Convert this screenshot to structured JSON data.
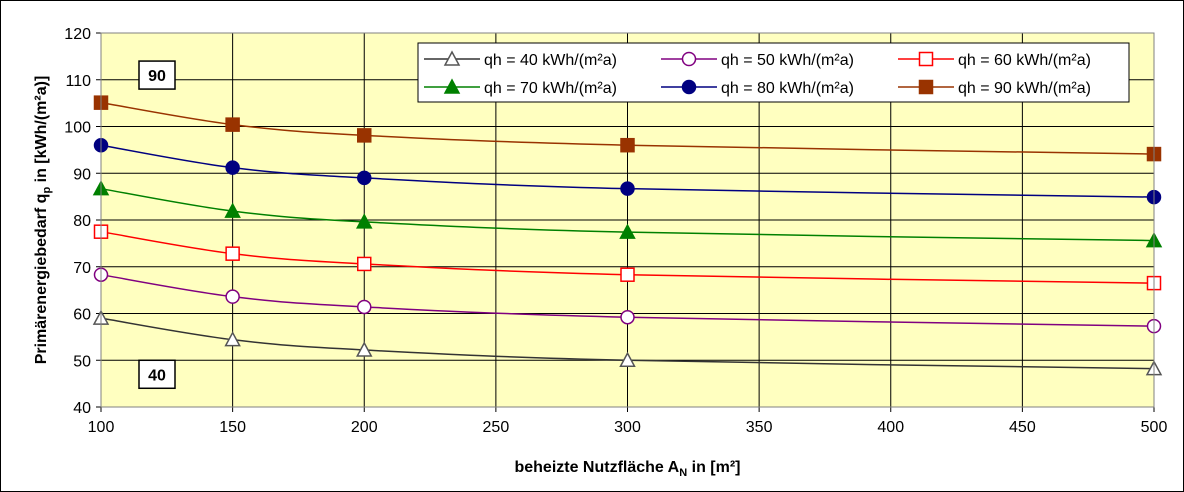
{
  "chart_data": {
    "type": "line",
    "xlabel": "beheizte Nutzfläche A",
    "xlabel_sub": "N",
    "xlabel_unit": " in [m²]",
    "ylabel": "Primärenergiebedarf q",
    "ylabel_sub": "p",
    "ylabel_unit": " in [kWh/(m²a)]",
    "xlim": [
      100,
      500
    ],
    "ylim": [
      40,
      120
    ],
    "x_ticks": [
      100,
      150,
      200,
      250,
      300,
      350,
      400,
      450,
      500
    ],
    "y_ticks": [
      40,
      50,
      60,
      70,
      80,
      90,
      100,
      110,
      120
    ],
    "grid": true,
    "plot_background": "#ffffc0",
    "legend_position": "top-right",
    "x": [
      100,
      150,
      200,
      300,
      500
    ],
    "series": [
      {
        "name": "qh = 40 kWh/(m²a)",
        "values": [
          59.0,
          54.4,
          52.2,
          50.0,
          48.2
        ],
        "color": "#333333",
        "marker": "triangle-open",
        "marker_fill": "#ffffff",
        "marker_stroke": "#555555"
      },
      {
        "name": "qh = 50 kWh/(m²a)",
        "values": [
          68.3,
          63.6,
          61.4,
          59.2,
          57.3
        ],
        "color": "#800080",
        "marker": "circle-open",
        "marker_fill": "#ffffff",
        "marker_stroke": "#800080"
      },
      {
        "name": "qh = 60 kWh/(m²a)",
        "values": [
          77.5,
          72.8,
          70.6,
          68.3,
          66.5
        ],
        "color": "#ff0000",
        "marker": "square-open",
        "marker_fill": "#ffffff",
        "marker_stroke": "#ff0000"
      },
      {
        "name": "qh = 70 kWh/(m²a)",
        "values": [
          86.7,
          81.9,
          79.6,
          77.4,
          75.6
        ],
        "color": "#008000",
        "marker": "triangle",
        "marker_fill": "#008000",
        "marker_stroke": "#008000"
      },
      {
        "name": "qh = 80 kWh/(m²a)",
        "values": [
          96.0,
          91.2,
          89.0,
          86.7,
          84.9
        ],
        "color": "#000080",
        "marker": "circle",
        "marker_fill": "#000080",
        "marker_stroke": "#000080"
      },
      {
        "name": "qh = 90 kWh/(m²a)",
        "values": [
          105.1,
          100.4,
          98.1,
          96.0,
          94.1
        ],
        "color": "#993300",
        "marker": "square",
        "marker_fill": "#993300",
        "marker_stroke": "#993300"
      }
    ],
    "annotations": [
      {
        "text": "90",
        "x": 100,
        "y": 111
      },
      {
        "text": "40",
        "x": 100,
        "y": 47
      }
    ]
  }
}
